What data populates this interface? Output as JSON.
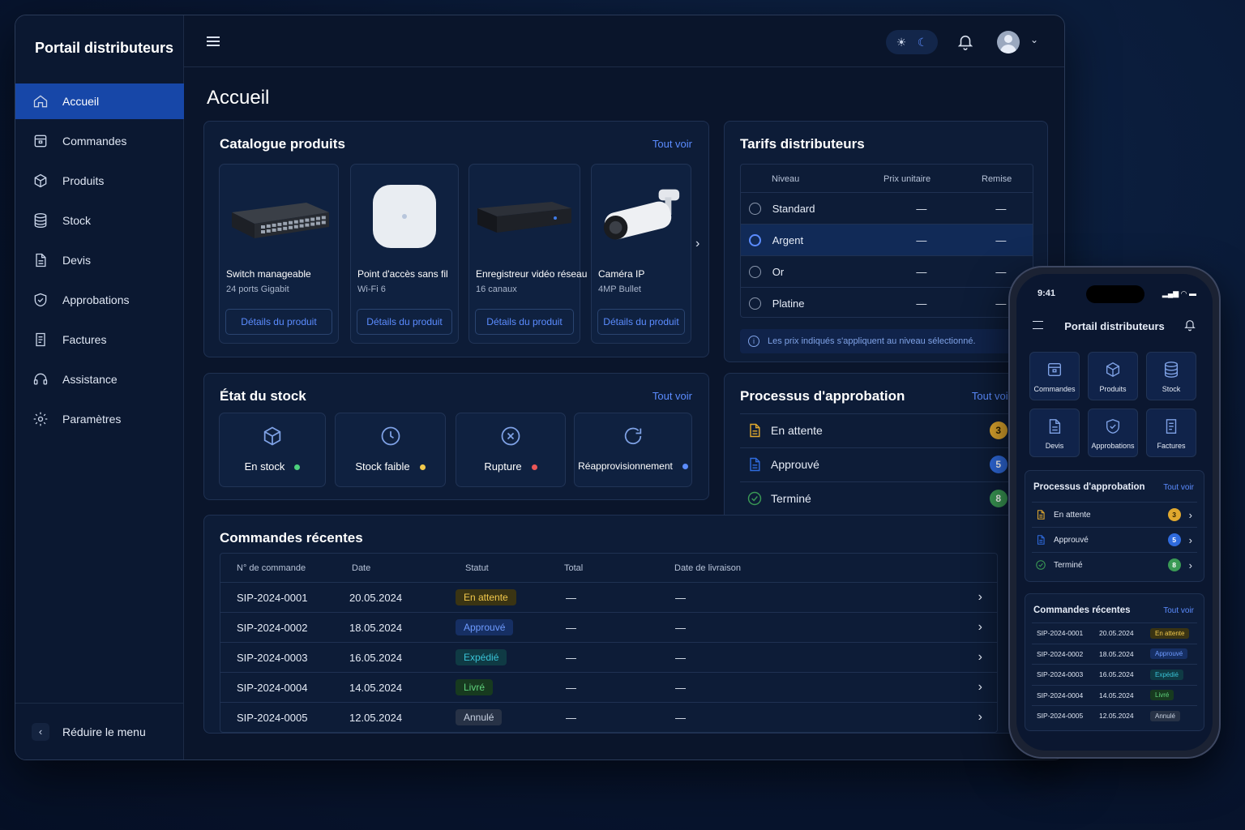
{
  "sidebar": {
    "brand": "Portail distributeurs",
    "items": [
      {
        "label": "Accueil",
        "icon": "home-icon"
      },
      {
        "label": "Commandes",
        "icon": "orders-icon"
      },
      {
        "label": "Produits",
        "icon": "box-icon"
      },
      {
        "label": "Stock",
        "icon": "database-icon"
      },
      {
        "label": "Devis",
        "icon": "document-icon"
      },
      {
        "label": "Approbations",
        "icon": "shield-icon"
      },
      {
        "label": "Factures",
        "icon": "invoice-icon"
      },
      {
        "label": "Assistance",
        "icon": "headset-icon"
      },
      {
        "label": "Paramètres",
        "icon": "gear-icon"
      }
    ],
    "collapse_label": "Réduire le menu"
  },
  "page_title": "Accueil",
  "catalog": {
    "title": "Catalogue produits",
    "see_all": "Tout voir",
    "products": [
      {
        "name": "Switch manageable",
        "sub": "24 ports Gigabit",
        "button": "Détails du produit",
        "icon": "switch-image"
      },
      {
        "name": "Point d'accès sans fil",
        "sub": "Wi-Fi 6",
        "button": "Détails du produit",
        "icon": "access-point-image"
      },
      {
        "name": "Enregistreur vidéo réseau",
        "sub": "16 canaux",
        "button": "Détails du produit",
        "icon": "nvr-image"
      },
      {
        "name": "Caméra IP",
        "sub": "4MP Bullet",
        "button": "Détails du produit",
        "icon": "camera-image"
      }
    ]
  },
  "tariffs": {
    "title": "Tarifs distributeurs",
    "headers": [
      "Niveau",
      "Prix unitaire",
      "Remise"
    ],
    "rows": [
      {
        "level": "Standard",
        "price": "—",
        "discount": "—",
        "selected": false
      },
      {
        "level": "Argent",
        "price": "—",
        "discount": "—",
        "selected": true
      },
      {
        "level": "Or",
        "price": "—",
        "discount": "—",
        "selected": false
      },
      {
        "level": "Platine",
        "price": "—",
        "discount": "—",
        "selected": false
      }
    ],
    "note": "Les prix indiqués s'appliquent au niveau sélectionné."
  },
  "stock": {
    "title": "État du stock",
    "see_all": "Tout voir",
    "items": [
      {
        "label": "En stock",
        "color": "#4cd07d",
        "icon": "box-icon"
      },
      {
        "label": "Stock faible",
        "color": "#f2c94c",
        "icon": "clock-icon"
      },
      {
        "label": "Rupture",
        "color": "#eb5757",
        "icon": "x-circle-icon"
      },
      {
        "label": "Réapprovisionnement",
        "color": "#5b8cff",
        "icon": "refresh-icon"
      }
    ]
  },
  "approval": {
    "title": "Processus d'approbation",
    "see_all": "Tout voir",
    "items": [
      {
        "label": "En attente",
        "count": "3",
        "color": "#e0a82e",
        "icon": "document-icon"
      },
      {
        "label": "Approuvé",
        "count": "5",
        "color": "#2f6bde",
        "icon": "document-icon"
      },
      {
        "label": "Terminé",
        "count": "8",
        "color": "#3a9a55",
        "icon": "check-circle-icon"
      }
    ]
  },
  "orders": {
    "title": "Commandes récentes",
    "headers": [
      "N° de commande",
      "Date",
      "Statut",
      "Total",
      "Date de livraison"
    ],
    "rows": [
      {
        "id": "SIP-2024-0001",
        "date": "20.05.2024",
        "status": "En attente",
        "cls": "b-att",
        "total": "—",
        "delivery": "—"
      },
      {
        "id": "SIP-2024-0002",
        "date": "18.05.2024",
        "status": "Approuvé",
        "cls": "b-app",
        "total": "—",
        "delivery": "—"
      },
      {
        "id": "SIP-2024-0003",
        "date": "16.05.2024",
        "status": "Expédié",
        "cls": "b-exp",
        "total": "—",
        "delivery": "—"
      },
      {
        "id": "SIP-2024-0004",
        "date": "14.05.2024",
        "status": "Livré",
        "cls": "b-liv",
        "total": "—",
        "delivery": "—"
      },
      {
        "id": "SIP-2024-0005",
        "date": "12.05.2024",
        "status": "Annulé",
        "cls": "b-ann",
        "total": "—",
        "delivery": "—"
      }
    ]
  },
  "phone": {
    "time": "9:41",
    "title": "Portail distributeurs",
    "quick": [
      {
        "label": "Commandes",
        "icon": "orders-icon"
      },
      {
        "label": "Produits",
        "icon": "box-icon"
      },
      {
        "label": "Stock",
        "icon": "database-icon"
      },
      {
        "label": "Devis",
        "icon": "document-icon"
      },
      {
        "label": "Approbations",
        "icon": "shield-icon"
      },
      {
        "label": "Factures",
        "icon": "invoice-icon"
      }
    ],
    "approval_title": "Processus d'approbation",
    "orders_title": "Commandes récentes",
    "see_all": "Tout voir"
  }
}
